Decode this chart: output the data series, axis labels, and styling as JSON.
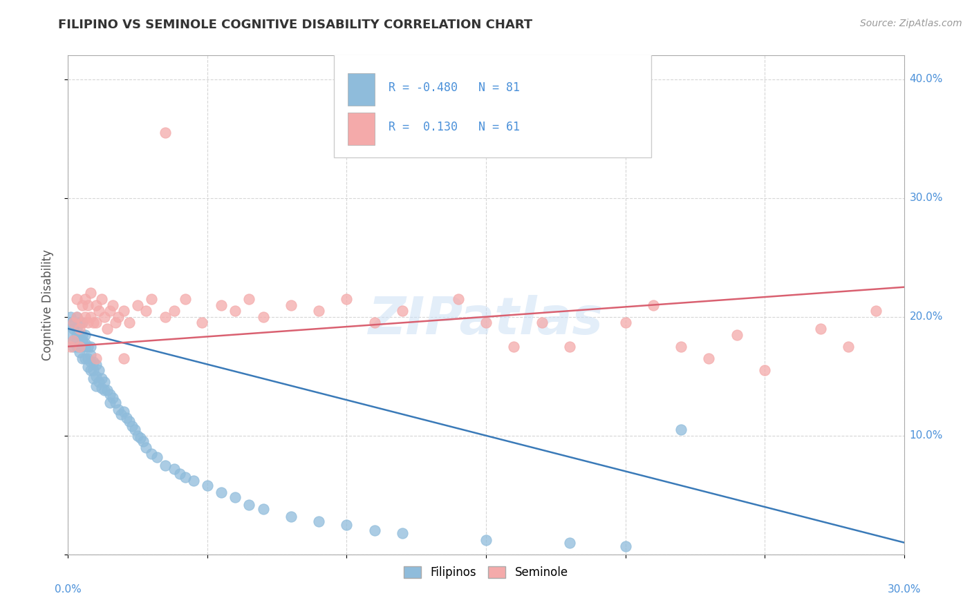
{
  "title": "FILIPINO VS SEMINOLE COGNITIVE DISABILITY CORRELATION CHART",
  "source": "Source: ZipAtlas.com",
  "ylabel": "Cognitive Disability",
  "xlim": [
    0.0,
    0.3
  ],
  "ylim": [
    0.0,
    0.42
  ],
  "R_filipino": -0.48,
  "N_filipino": 81,
  "R_seminole": 0.13,
  "N_seminole": 61,
  "color_filipino": "#8fbcdb",
  "color_seminole": "#f4aaaa",
  "color_line_filipino": "#3a7ab8",
  "color_line_seminole": "#d96070",
  "watermark": "ZIPatlas",
  "legend_label_filipino": "Filipinos",
  "legend_label_seminole": "Seminole",
  "fil_line_x0": 0.0,
  "fil_line_y0": 0.19,
  "fil_line_x1": 0.3,
  "fil_line_y1": 0.01,
  "sem_line_x0": 0.0,
  "sem_line_y0": 0.175,
  "sem_line_x1": 0.3,
  "sem_line_y1": 0.225,
  "filipino_x": [
    0.001,
    0.001,
    0.001,
    0.002,
    0.002,
    0.002,
    0.002,
    0.003,
    0.003,
    0.003,
    0.003,
    0.003,
    0.004,
    0.004,
    0.004,
    0.004,
    0.005,
    0.005,
    0.005,
    0.005,
    0.005,
    0.006,
    0.006,
    0.006,
    0.006,
    0.007,
    0.007,
    0.007,
    0.008,
    0.008,
    0.008,
    0.008,
    0.009,
    0.009,
    0.009,
    0.01,
    0.01,
    0.01,
    0.011,
    0.011,
    0.012,
    0.012,
    0.013,
    0.013,
    0.014,
    0.015,
    0.015,
    0.016,
    0.017,
    0.018,
    0.019,
    0.02,
    0.021,
    0.022,
    0.023,
    0.024,
    0.025,
    0.026,
    0.027,
    0.028,
    0.03,
    0.032,
    0.035,
    0.038,
    0.04,
    0.042,
    0.045,
    0.05,
    0.055,
    0.06,
    0.065,
    0.07,
    0.08,
    0.09,
    0.1,
    0.11,
    0.12,
    0.15,
    0.18,
    0.2,
    0.22
  ],
  "filipino_y": [
    0.195,
    0.2,
    0.185,
    0.195,
    0.18,
    0.175,
    0.19,
    0.2,
    0.185,
    0.175,
    0.19,
    0.18,
    0.195,
    0.175,
    0.185,
    0.17,
    0.195,
    0.185,
    0.175,
    0.165,
    0.18,
    0.185,
    0.175,
    0.165,
    0.178,
    0.175,
    0.165,
    0.158,
    0.175,
    0.162,
    0.155,
    0.168,
    0.162,
    0.155,
    0.148,
    0.16,
    0.15,
    0.142,
    0.155,
    0.145,
    0.148,
    0.14,
    0.145,
    0.138,
    0.138,
    0.135,
    0.128,
    0.132,
    0.128,
    0.122,
    0.118,
    0.12,
    0.115,
    0.112,
    0.108,
    0.105,
    0.1,
    0.098,
    0.095,
    0.09,
    0.085,
    0.082,
    0.075,
    0.072,
    0.068,
    0.065,
    0.062,
    0.058,
    0.052,
    0.048,
    0.042,
    0.038,
    0.032,
    0.028,
    0.025,
    0.02,
    0.018,
    0.012,
    0.01,
    0.007,
    0.105
  ],
  "seminole_x": [
    0.001,
    0.002,
    0.002,
    0.003,
    0.003,
    0.004,
    0.004,
    0.005,
    0.005,
    0.006,
    0.006,
    0.007,
    0.007,
    0.008,
    0.008,
    0.009,
    0.01,
    0.01,
    0.011,
    0.012,
    0.013,
    0.014,
    0.015,
    0.016,
    0.017,
    0.018,
    0.02,
    0.022,
    0.025,
    0.028,
    0.03,
    0.035,
    0.038,
    0.042,
    0.048,
    0.055,
    0.06,
    0.065,
    0.07,
    0.08,
    0.09,
    0.1,
    0.11,
    0.12,
    0.14,
    0.15,
    0.16,
    0.17,
    0.18,
    0.2,
    0.21,
    0.22,
    0.23,
    0.24,
    0.25,
    0.27,
    0.28,
    0.29,
    0.01,
    0.02,
    0.035
  ],
  "seminole_y": [
    0.175,
    0.195,
    0.18,
    0.215,
    0.2,
    0.19,
    0.175,
    0.21,
    0.195,
    0.215,
    0.2,
    0.21,
    0.195,
    0.22,
    0.2,
    0.195,
    0.21,
    0.195,
    0.205,
    0.215,
    0.2,
    0.19,
    0.205,
    0.21,
    0.195,
    0.2,
    0.205,
    0.195,
    0.21,
    0.205,
    0.215,
    0.2,
    0.205,
    0.215,
    0.195,
    0.21,
    0.205,
    0.215,
    0.2,
    0.21,
    0.205,
    0.215,
    0.195,
    0.205,
    0.215,
    0.195,
    0.175,
    0.195,
    0.175,
    0.195,
    0.21,
    0.175,
    0.165,
    0.185,
    0.155,
    0.19,
    0.175,
    0.205,
    0.165,
    0.165,
    0.355
  ]
}
